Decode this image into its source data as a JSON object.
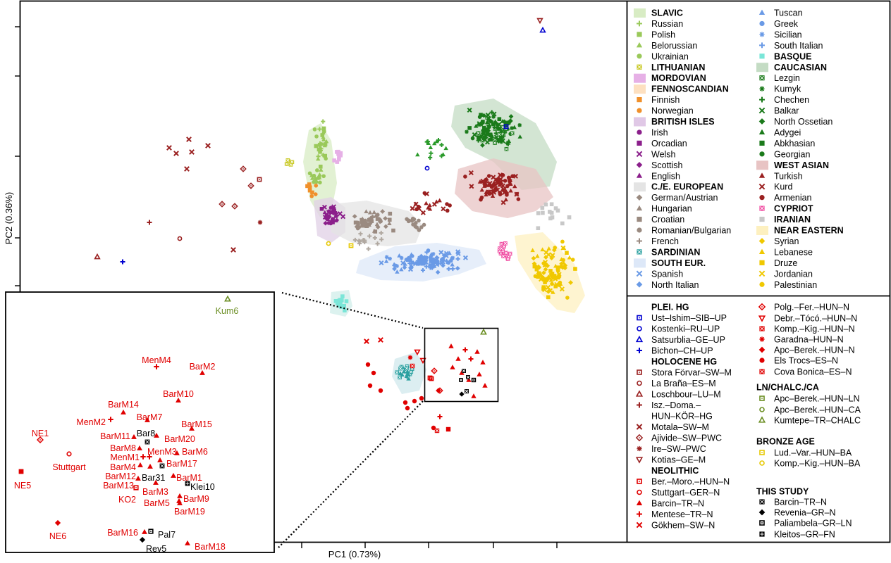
{
  "chart_data": {
    "type": "scatter",
    "xlabel": "PC1 (0.73%)",
    "ylabel": "PC2 (0.36%)",
    "legend_modern": [
      {
        "label": "SLAVIC",
        "bold": true,
        "marker": "band",
        "color": "#d8ecc4"
      },
      {
        "label": "Russian",
        "marker": "plus",
        "color": "#9ac95a"
      },
      {
        "label": "Polish",
        "marker": "square",
        "color": "#9ac95a"
      },
      {
        "label": "Belorussian",
        "marker": "triangle",
        "color": "#9ac95a"
      },
      {
        "label": "Ukrainian",
        "marker": "circle",
        "color": "#9ac95a"
      },
      {
        "label": "LITHUANIAN",
        "bold": true,
        "marker": "sqx",
        "color": "#c8c820"
      },
      {
        "label": "MORDOVIAN",
        "bold": true,
        "marker": "band",
        "color": "#e6b0e6"
      },
      {
        "label": "FENNOSCANDIAN",
        "bold": true,
        "marker": "band",
        "color": "#fde0c0"
      },
      {
        "label": "Finnish",
        "marker": "square",
        "color": "#f0902a"
      },
      {
        "label": "Norwegian",
        "marker": "circle",
        "color": "#f0902a"
      },
      {
        "label": "BRITISH ISLES",
        "bold": true,
        "marker": "band",
        "color": "#e0c8e6"
      },
      {
        "label": "Irish",
        "marker": "circle",
        "color": "#8b1f8b"
      },
      {
        "label": "Orcadian",
        "marker": "square",
        "color": "#8b1f8b"
      },
      {
        "label": "Welsh",
        "marker": "x",
        "color": "#8b1f8b"
      },
      {
        "label": "Scottish",
        "marker": "diamond",
        "color": "#8b1f8b"
      },
      {
        "label": "English",
        "marker": "triangle",
        "color": "#8b1f8b"
      },
      {
        "label": "C./E. EUROPEAN",
        "bold": true,
        "marker": "band",
        "color": "#e4e4e4"
      },
      {
        "label": "German/Austrian",
        "marker": "diamond",
        "color": "#9a8a80"
      },
      {
        "label": "Hungarian",
        "marker": "triangle",
        "color": "#9a8a80"
      },
      {
        "label": "Croatian",
        "marker": "square",
        "color": "#9a8a80"
      },
      {
        "label": "Romanian/Bulgarian",
        "marker": "circle",
        "color": "#9a8a80"
      },
      {
        "label": "French",
        "marker": "plus",
        "color": "#9a8a80"
      },
      {
        "label": "SARDINIAN",
        "bold": true,
        "marker": "sqx",
        "color": "#2aa0a0"
      },
      {
        "label": "SOUTH EUR.",
        "bold": true,
        "marker": "band",
        "color": "#dde8f8"
      },
      {
        "label": "Spanish",
        "marker": "x",
        "color": "#6a9ae6"
      },
      {
        "label": "North Italian",
        "marker": "diamond",
        "color": "#6a9ae6"
      },
      {
        "label": "Tuscan",
        "marker": "triangle",
        "color": "#6a9ae6"
      },
      {
        "label": "Greek",
        "marker": "circle",
        "color": "#6a9ae6"
      },
      {
        "label": "Sicilian",
        "marker": "star",
        "color": "#6a9ae6"
      },
      {
        "label": "South Italian",
        "marker": "plus",
        "color": "#6a9ae6"
      },
      {
        "label": "BASQUE",
        "bold": true,
        "marker": "square",
        "color": "#7ae6d8"
      },
      {
        "label": "CAUCASIAN",
        "bold": true,
        "marker": "band",
        "color": "#c4dcc4"
      },
      {
        "label": "Lezgin",
        "marker": "sqx",
        "color": "#1a7a1a"
      },
      {
        "label": "Kumyk",
        "marker": "star",
        "color": "#1a7a1a"
      },
      {
        "label": "Chechen",
        "marker": "plus",
        "color": "#1a7a1a"
      },
      {
        "label": "Balkar",
        "marker": "x",
        "color": "#1a7a1a"
      },
      {
        "label": "North Ossetian",
        "marker": "diamond",
        "color": "#1a7a1a"
      },
      {
        "label": "Adygei",
        "marker": "triangle",
        "color": "#1a7a1a"
      },
      {
        "label": "Abkhasian",
        "marker": "square",
        "color": "#1a7a1a"
      },
      {
        "label": "Georgian",
        "marker": "circle",
        "color": "#1a7a1a"
      },
      {
        "label": "WEST ASIAN",
        "bold": true,
        "marker": "band",
        "color": "#e8c4c4"
      },
      {
        "label": "Turkish",
        "marker": "triangle",
        "color": "#9a2020"
      },
      {
        "label": "Kurd",
        "marker": "x",
        "color": "#9a2020"
      },
      {
        "label": "Armenian",
        "marker": "circle",
        "color": "#9a2020"
      },
      {
        "label": "CYPRIOT",
        "bold": true,
        "marker": "sqx",
        "color": "#f04aa0"
      },
      {
        "label": "IRANIAN",
        "bold": true,
        "marker": "square",
        "color": "#c8c8c8"
      },
      {
        "label": "NEAR EASTERN",
        "bold": true,
        "marker": "band",
        "color": "#fdf0c0"
      },
      {
        "label": "Syrian",
        "marker": "diamond",
        "color": "#f0c800"
      },
      {
        "label": "Lebanese",
        "marker": "triangle",
        "color": "#f0c800"
      },
      {
        "label": "Druze",
        "marker": "square",
        "color": "#f0c800"
      },
      {
        "label": "Jordanian",
        "marker": "x",
        "color": "#f0c800"
      },
      {
        "label": "Palestinian",
        "marker": "circle",
        "color": "#f0c800"
      }
    ],
    "legend_ancient": [
      {
        "label": "PLEI. HG",
        "bold": true,
        "marker": "none",
        "color": "#000000"
      },
      {
        "label": "Ust–Ishim–SIB–UP",
        "marker": "osquare",
        "color": "#0000d0"
      },
      {
        "label": "Kostenki–RU–UP",
        "marker": "ocircle",
        "color": "#0000d0"
      },
      {
        "label": "Satsurblia–GE–UP",
        "marker": "otriangle",
        "color": "#0000d0"
      },
      {
        "label": "Bichon–CH–UP",
        "marker": "plus",
        "color": "#0000d0"
      },
      {
        "label": "HOLOCENE HG",
        "bold": true,
        "marker": "none",
        "color": "#000000"
      },
      {
        "label": "Stora Förvar–SW–M",
        "marker": "osquare",
        "color": "#9a2020"
      },
      {
        "label": "La Braña–ES–M",
        "marker": "ocircle",
        "color": "#9a2020"
      },
      {
        "label": "Loschbour–LU–M",
        "marker": "otriangle",
        "color": "#9a2020"
      },
      {
        "label": "Isz.–Doma.–",
        "marker": "plus",
        "color": "#9a2020"
      },
      {
        "label": "HUN–KÖR–HG",
        "marker": "none",
        "color": "#000000"
      },
      {
        "label": "Motala–SW–M",
        "marker": "x",
        "color": "#9a2020"
      },
      {
        "label": "Ajivide–SW–PWC",
        "marker": "odiamond",
        "color": "#9a2020"
      },
      {
        "label": "Ire–SW–PWC",
        "marker": "star",
        "color": "#9a2020"
      },
      {
        "label": "Kotias–GE–M",
        "marker": "otriangledown",
        "color": "#9a2020"
      },
      {
        "label": "NEOLITHIC",
        "bold": true,
        "marker": "none",
        "color": "#000000"
      },
      {
        "label": "Ber.–Moro.–HUN–N",
        "marker": "osquare",
        "color": "#e00000"
      },
      {
        "label": "Stuttgart–GER–N",
        "marker": "ocircle",
        "color": "#e00000"
      },
      {
        "label": "Barcin–TR–N",
        "marker": "triangle",
        "color": "#e00000"
      },
      {
        "label": "Mentese–TR–N",
        "marker": "plus",
        "color": "#e00000"
      },
      {
        "label": "Gökhem–SW–N",
        "marker": "x",
        "color": "#e00000"
      }
    ],
    "legend_ancient2": [
      {
        "label": "Polg.–Fer.–HUN–N",
        "marker": "odiamond",
        "color": "#e00000"
      },
      {
        "label": "Debr.–Tócó.–HUN–N",
        "marker": "otriangledown",
        "color": "#e00000"
      },
      {
        "label": "Komp.–Kig.–HUN–N",
        "marker": "sqx",
        "color": "#e00000"
      },
      {
        "label": "Garadna–HUN–N",
        "marker": "star",
        "color": "#e00000"
      },
      {
        "label": "Apc–Berek.–HUN–N",
        "marker": "diamond",
        "color": "#e00000"
      },
      {
        "label": "Els Trocs–ES–N",
        "marker": "circle",
        "color": "#e00000"
      },
      {
        "label": "Cova Bonica–ES–N",
        "marker": "sqx",
        "color": "#e00000"
      },
      {
        "label": "LN/CHALC./CA",
        "bold": true,
        "marker": "none",
        "color": "#000000"
      },
      {
        "label": "Apc–Berek.–HUN–LN",
        "marker": "osquare",
        "color": "#6b8e23"
      },
      {
        "label": "Apc–Berek.–HUN–CA",
        "marker": "ocircle",
        "color": "#6b8e23"
      },
      {
        "label": "Kumtepe–TR–CHALC",
        "marker": "otriangle",
        "color": "#6b8e23"
      },
      {
        "label": "BRONZE AGE",
        "bold": true,
        "marker": "none",
        "color": "#000000"
      },
      {
        "label": "Lud.–Var.–HUN–BA",
        "marker": "osquare",
        "color": "#e6c800"
      },
      {
        "label": "Komp.–Kig.–HUN–BA",
        "marker": "ocircle",
        "color": "#e6c800"
      },
      {
        "label": "THIS STUDY",
        "bold": true,
        "marker": "none",
        "color": "#000000"
      },
      {
        "label": "Barcin–TR–N",
        "marker": "sqx",
        "color": "#000000"
      },
      {
        "label": "Revenia–GR–N",
        "marker": "diamond",
        "color": "#000000"
      },
      {
        "label": "Paliambela–GR–LN",
        "marker": "osquare",
        "color": "#000000"
      },
      {
        "label": "Kleitos–GR–FN",
        "marker": "sqplus",
        "color": "#000000"
      }
    ],
    "inset_labels": [
      {
        "label": "Kum6",
        "color": "#6b8e23"
      },
      {
        "label": "MenM4",
        "color": "#e00000"
      },
      {
        "label": "BarM2",
        "color": "#e00000"
      },
      {
        "label": "BarM10",
        "color": "#e00000"
      },
      {
        "label": "BarM14",
        "color": "#e00000"
      },
      {
        "label": "NE1",
        "color": "#e00000"
      },
      {
        "label": "MenM2",
        "color": "#e00000"
      },
      {
        "label": "BarM7",
        "color": "#e00000"
      },
      {
        "label": "BarM15",
        "color": "#e00000"
      },
      {
        "label": "BarM11",
        "color": "#e00000"
      },
      {
        "label": "Bar8",
        "color": "#000000"
      },
      {
        "label": "BarM20",
        "color": "#e00000"
      },
      {
        "label": "BarM8",
        "color": "#e00000"
      },
      {
        "label": "MenM3",
        "color": "#e00000"
      },
      {
        "label": "BarM6",
        "color": "#e00000"
      },
      {
        "label": "MenM1",
        "color": "#e00000"
      },
      {
        "label": "Stuttgart",
        "color": "#e00000"
      },
      {
        "label": "BarM17",
        "color": "#e00000"
      },
      {
        "label": "BarM4",
        "color": "#e00000"
      },
      {
        "label": "BarM12",
        "color": "#e00000"
      },
      {
        "label": "Bar31",
        "color": "#000000"
      },
      {
        "label": "BarM1",
        "color": "#e00000"
      },
      {
        "label": "NE5",
        "color": "#e00000"
      },
      {
        "label": "BarM13",
        "color": "#e00000"
      },
      {
        "label": "Klei10",
        "color": "#000000"
      },
      {
        "label": "BarM3",
        "color": "#e00000"
      },
      {
        "label": "BarM9",
        "color": "#e00000"
      },
      {
        "label": "KO2",
        "color": "#e00000"
      },
      {
        "label": "BarM5",
        "color": "#e00000"
      },
      {
        "label": "BarM19",
        "color": "#e00000"
      },
      {
        "label": "BarM16",
        "color": "#e00000"
      },
      {
        "label": "Pal7",
        "color": "#000000"
      },
      {
        "label": "NE6",
        "color": "#e00000"
      },
      {
        "label": "Rev5",
        "color": "#000000"
      },
      {
        "label": "BarM18",
        "color": "#e00000"
      }
    ]
  }
}
